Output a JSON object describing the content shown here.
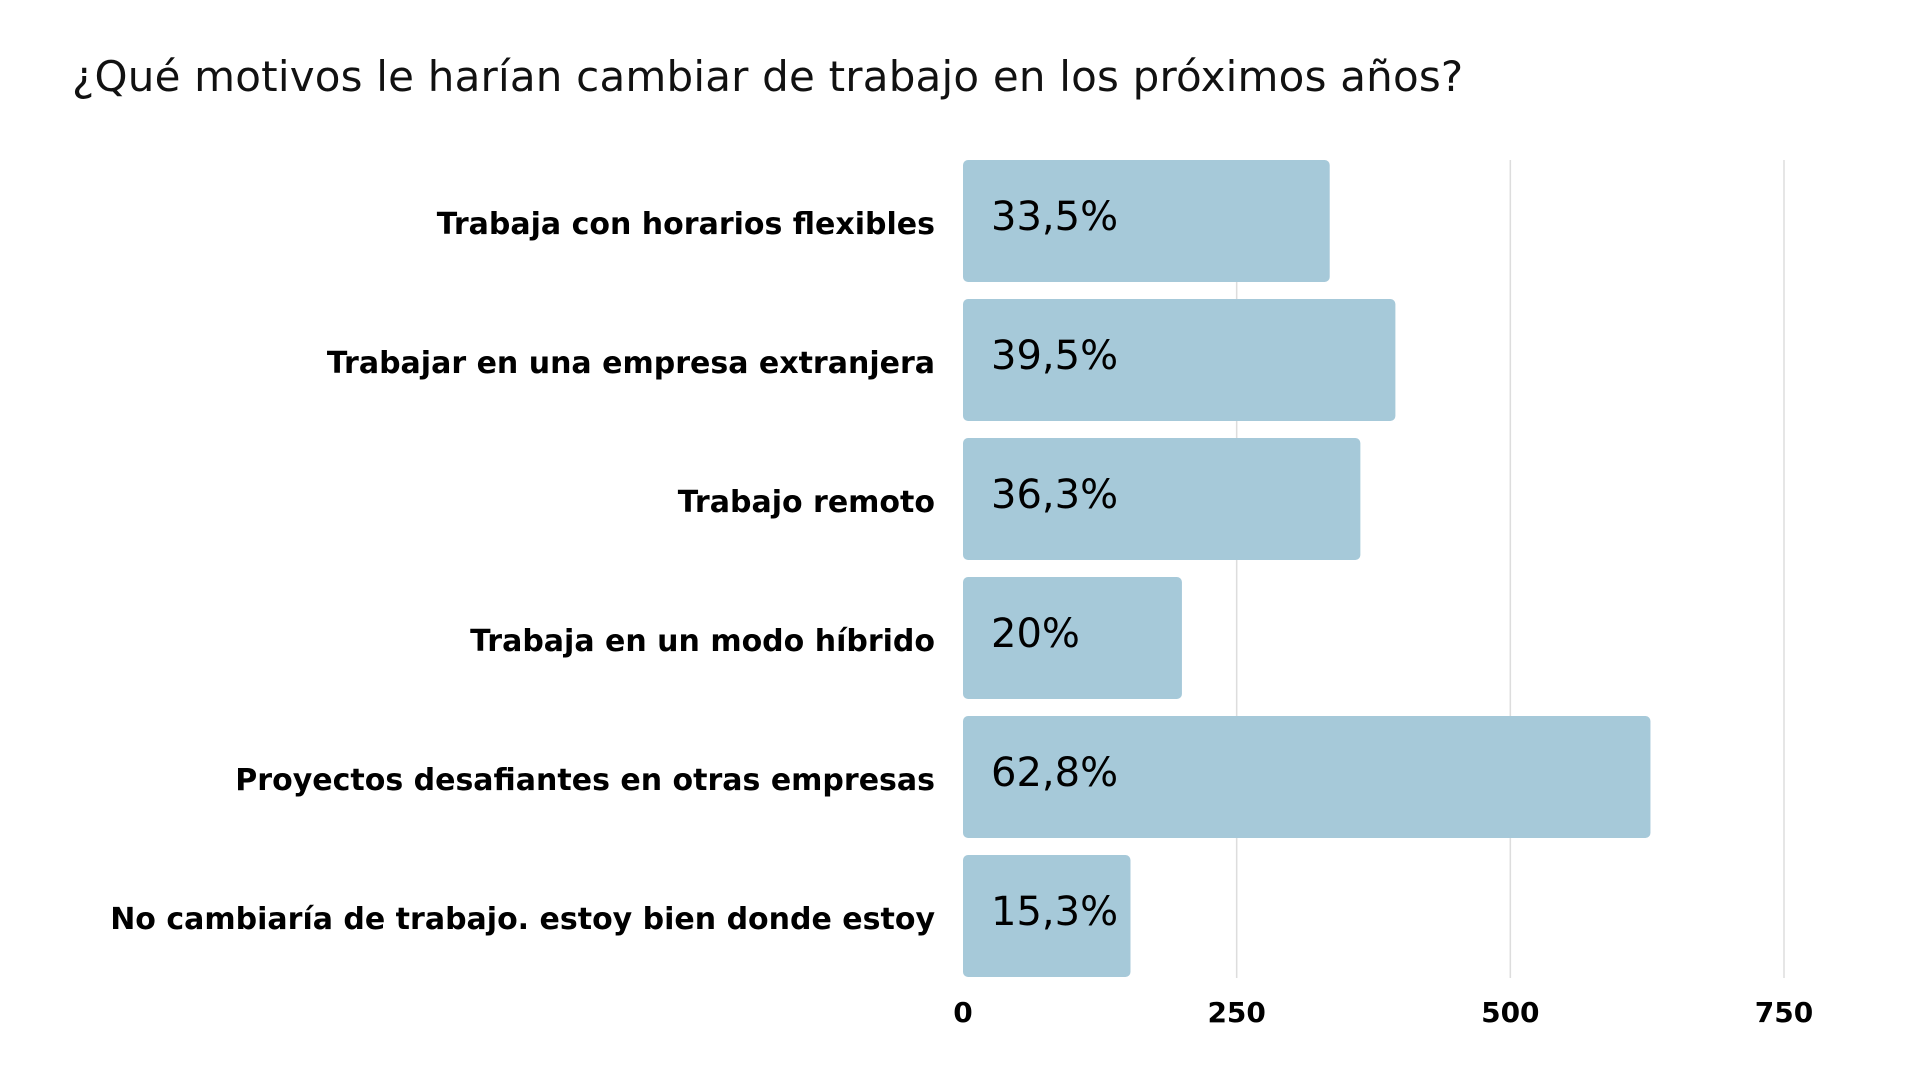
{
  "chart_data": {
    "type": "bar",
    "orientation": "horizontal",
    "title": "¿Qué motivos le harían cambiar de trabajo en los próximos años?",
    "categories": [
      "Trabaja con horarios flexibles",
      "Trabajar en una empresa extranjera",
      "Trabajo remoto",
      "Trabaja en un modo híbrido",
      "Proyectos desafiantes en otras empresas",
      "No cambiaría de trabajo. estoy bien donde estoy"
    ],
    "values": [
      335,
      395,
      363,
      200,
      628,
      153
    ],
    "data_labels": [
      "33,5%",
      "39,5%",
      "36,3%",
      "20%",
      "62,8%",
      "15,3%"
    ],
    "xlim": [
      0,
      750
    ],
    "xticks": [
      0,
      250,
      500,
      750
    ],
    "xtick_labels": [
      "0",
      "250",
      "500",
      "750"
    ],
    "grid": true,
    "legend": "none",
    "colors": {
      "bar": "#A6C9D9",
      "grid": "#DDDDDD",
      "text": "#000000"
    }
  }
}
